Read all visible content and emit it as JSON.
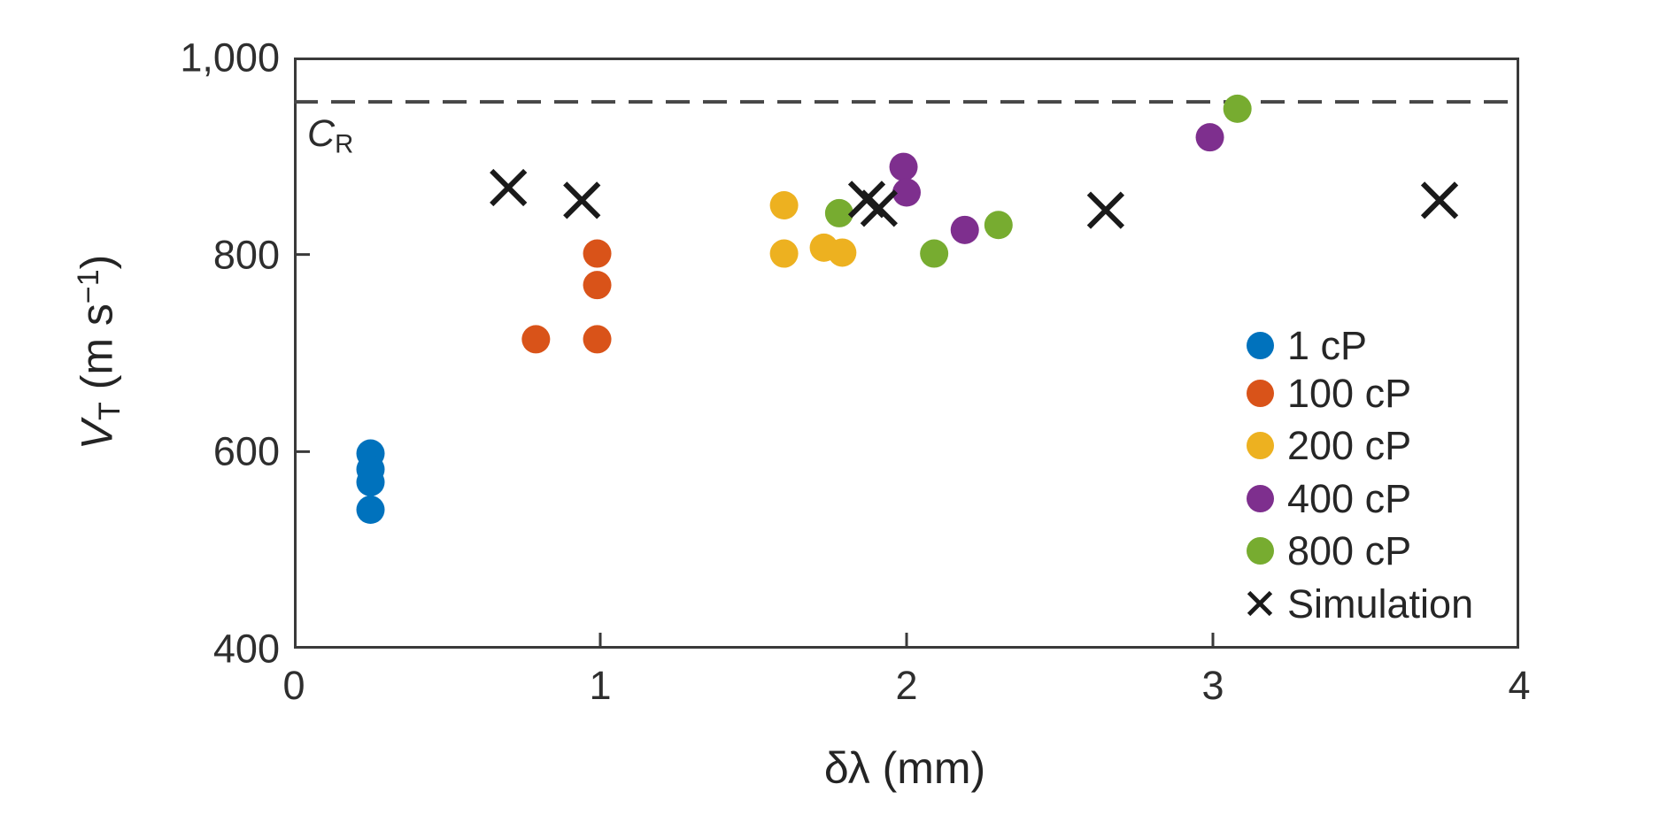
{
  "figure": {
    "background": "#ffffff",
    "frame_color": "#3a3a3a",
    "text_color": "#262626"
  },
  "axes": {
    "xlabel": "δλ (mm)",
    "ylabel": {
      "var": "V",
      "var_sub": "T",
      "unit_pre": " (m s",
      "unit_sup": "−1",
      "unit_post": ")"
    },
    "x_ticks": [
      {
        "value": 0,
        "label": "0"
      },
      {
        "value": 1,
        "label": "1"
      },
      {
        "value": 2,
        "label": "2"
      },
      {
        "value": 3,
        "label": "3"
      },
      {
        "value": 4,
        "label": "4"
      }
    ],
    "y_ticks": [
      {
        "value": 400,
        "label": "400"
      },
      {
        "value": 600,
        "label": "600"
      },
      {
        "value": 800,
        "label": "800"
      },
      {
        "value": 1000,
        "label": "1,000"
      }
    ]
  },
  "annotations": {
    "cr": {
      "main": "C",
      "sub": "R",
      "y_value": 955,
      "line_style": "dashed",
      "line_color": "#474747"
    }
  },
  "legend": {
    "position": "lower-right-inside",
    "items": [
      {
        "label": "1 cP",
        "marker": "circle",
        "color": "#0072BD"
      },
      {
        "label": "100 cP",
        "marker": "circle",
        "color": "#D95319"
      },
      {
        "label": "200 cP",
        "marker": "circle",
        "color": "#EDB120"
      },
      {
        "label": "400 cP",
        "marker": "circle",
        "color": "#7E2F8E"
      },
      {
        "label": "800 cP",
        "marker": "circle",
        "color": "#77AC30"
      },
      {
        "label": "Simulation",
        "marker": "x",
        "color": "#1a1a1a"
      }
    ]
  },
  "chart_data": {
    "type": "scatter",
    "title": "",
    "xlabel": "δλ (mm)",
    "ylabel": "V_T (m s^−1)",
    "xlim": [
      0,
      4
    ],
    "ylim": [
      400,
      1000
    ],
    "grid": false,
    "reference_line": {
      "label": "C_R",
      "y": 955,
      "style": "dashed"
    },
    "series": [
      {
        "name": "1 cP",
        "marker": "circle",
        "color": "#0072BD",
        "points": [
          [
            0.25,
            598
          ],
          [
            0.25,
            582
          ],
          [
            0.25,
            569
          ],
          [
            0.25,
            541
          ]
        ]
      },
      {
        "name": "100 cP",
        "marker": "circle",
        "color": "#D95319",
        "points": [
          [
            0.79,
            714
          ],
          [
            0.99,
            714
          ],
          [
            0.99,
            769
          ],
          [
            0.99,
            801
          ]
        ]
      },
      {
        "name": "200 cP",
        "marker": "circle",
        "color": "#EDB120",
        "points": [
          [
            1.6,
            850
          ],
          [
            1.6,
            801
          ],
          [
            1.73,
            807
          ],
          [
            1.79,
            802
          ]
        ]
      },
      {
        "name": "400 cP",
        "marker": "circle",
        "color": "#7E2F8E",
        "points": [
          [
            1.99,
            889
          ],
          [
            2.0,
            863
          ],
          [
            2.19,
            825
          ],
          [
            2.99,
            919
          ]
        ]
      },
      {
        "name": "800 cP",
        "marker": "circle",
        "color": "#77AC30",
        "points": [
          [
            1.78,
            842
          ],
          [
            2.09,
            801
          ],
          [
            2.3,
            830
          ],
          [
            3.08,
            948
          ]
        ]
      },
      {
        "name": "Simulation",
        "marker": "x",
        "color": "#1a1a1a",
        "points": [
          [
            0.7,
            868
          ],
          [
            0.94,
            855
          ],
          [
            1.87,
            856
          ],
          [
            1.91,
            847
          ],
          [
            2.65,
            845
          ],
          [
            3.74,
            855
          ]
        ]
      }
    ]
  }
}
